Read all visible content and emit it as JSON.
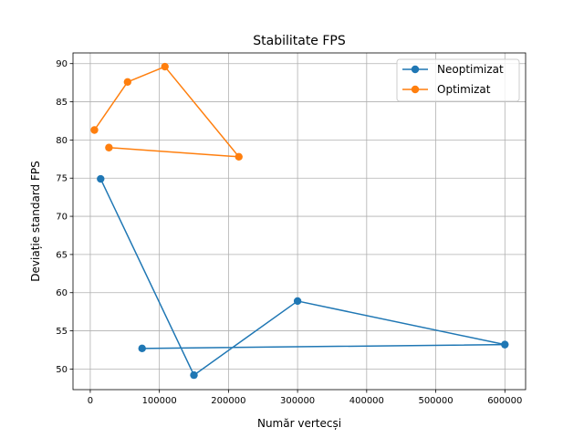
{
  "chart_data": {
    "type": "line",
    "title": "Stabilitate FPS",
    "xlabel": "Număr vertecși",
    "ylabel": "Deviație standard FPS",
    "xlim": [
      -25000,
      630000
    ],
    "ylim": [
      47.3,
      91.4
    ],
    "x_ticks": [
      0,
      100000,
      200000,
      300000,
      400000,
      500000,
      600000
    ],
    "y_ticks": [
      50,
      55,
      60,
      65,
      70,
      75,
      80,
      85,
      90
    ],
    "grid": true,
    "legend": "top-right",
    "series": [
      {
        "name": "Neoptimizat",
        "color": "#1f77b4",
        "marker": "circle",
        "x": [
          15000,
          150000,
          300000,
          600000,
          75000
        ],
        "y": [
          74.9,
          49.2,
          58.9,
          53.2,
          52.7
        ]
      },
      {
        "name": "Optimizat",
        "color": "#ff7f0e",
        "marker": "circle",
        "x": [
          6000,
          54000,
          108000,
          215000,
          27000
        ],
        "y": [
          81.3,
          87.6,
          89.6,
          77.8,
          79.0
        ]
      }
    ]
  }
}
